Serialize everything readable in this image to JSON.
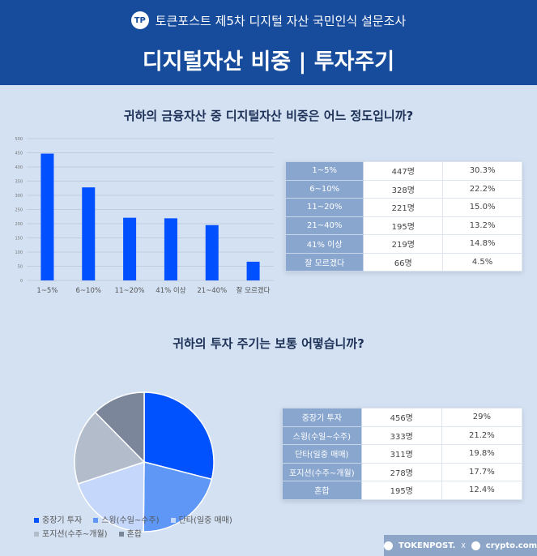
{
  "header": {
    "supertitle": "토큰포스트 제5차 디지털 자산 국민인식 설문조사",
    "title": "디지털자산 비중 | 투자주기",
    "logo_text": "TP"
  },
  "q1": "귀하의 금융자산 중 디지털자산 비중은 어느 정도입니까?",
  "q2": "귀하의 투자 주기는 보통 어떻습니까?",
  "chart_data": [
    {
      "type": "bar",
      "categories": [
        "1~5%",
        "6~10%",
        "11~20%",
        "41% 이상",
        "21~40%",
        "잘 모르겠다"
      ],
      "values": [
        447,
        328,
        221,
        219,
        195,
        66
      ],
      "ylim": [
        0,
        500
      ],
      "yticks": [
        0,
        50,
        100,
        150,
        200,
        250,
        300,
        350,
        400,
        450,
        500
      ],
      "color": "#0050ff",
      "grid": true
    },
    {
      "type": "pie",
      "categories": [
        "중장기 투자",
        "스윙(수일~수주)",
        "단타(일중 매매)",
        "포지션(수주~개월)",
        "혼합"
      ],
      "values": [
        456,
        333,
        311,
        278,
        195
      ],
      "colors": [
        "#0052ff",
        "#5e97f6",
        "#c5d7fa",
        "#b3bccb",
        "#7c869b"
      ],
      "legend": "bottom"
    }
  ],
  "table1": [
    [
      "1~5%",
      "447명",
      "30.3%"
    ],
    [
      "6~10%",
      "328명",
      "22.2%"
    ],
    [
      "11~20%",
      "221명",
      "15.0%"
    ],
    [
      "21~40%",
      "195명",
      "13.2%"
    ],
    [
      "41% 이상",
      "219명",
      "14.8%"
    ],
    [
      "잘 모르겠다",
      "66명",
      "4.5%"
    ]
  ],
  "table2": [
    [
      "중장기 투자",
      "456명",
      "29%"
    ],
    [
      "스윙(수일~수주)",
      "333명",
      "21.2%"
    ],
    [
      "단타(일중 매매)",
      "311명",
      "19.8%"
    ],
    [
      "포지션(수주~개월)",
      "278명",
      "17.7%"
    ],
    [
      "혼합",
      "195명",
      "12.4%"
    ]
  ],
  "footer": {
    "brand1": "TOKENPOST.",
    "sep": "X",
    "brand2": "crypto.com"
  }
}
